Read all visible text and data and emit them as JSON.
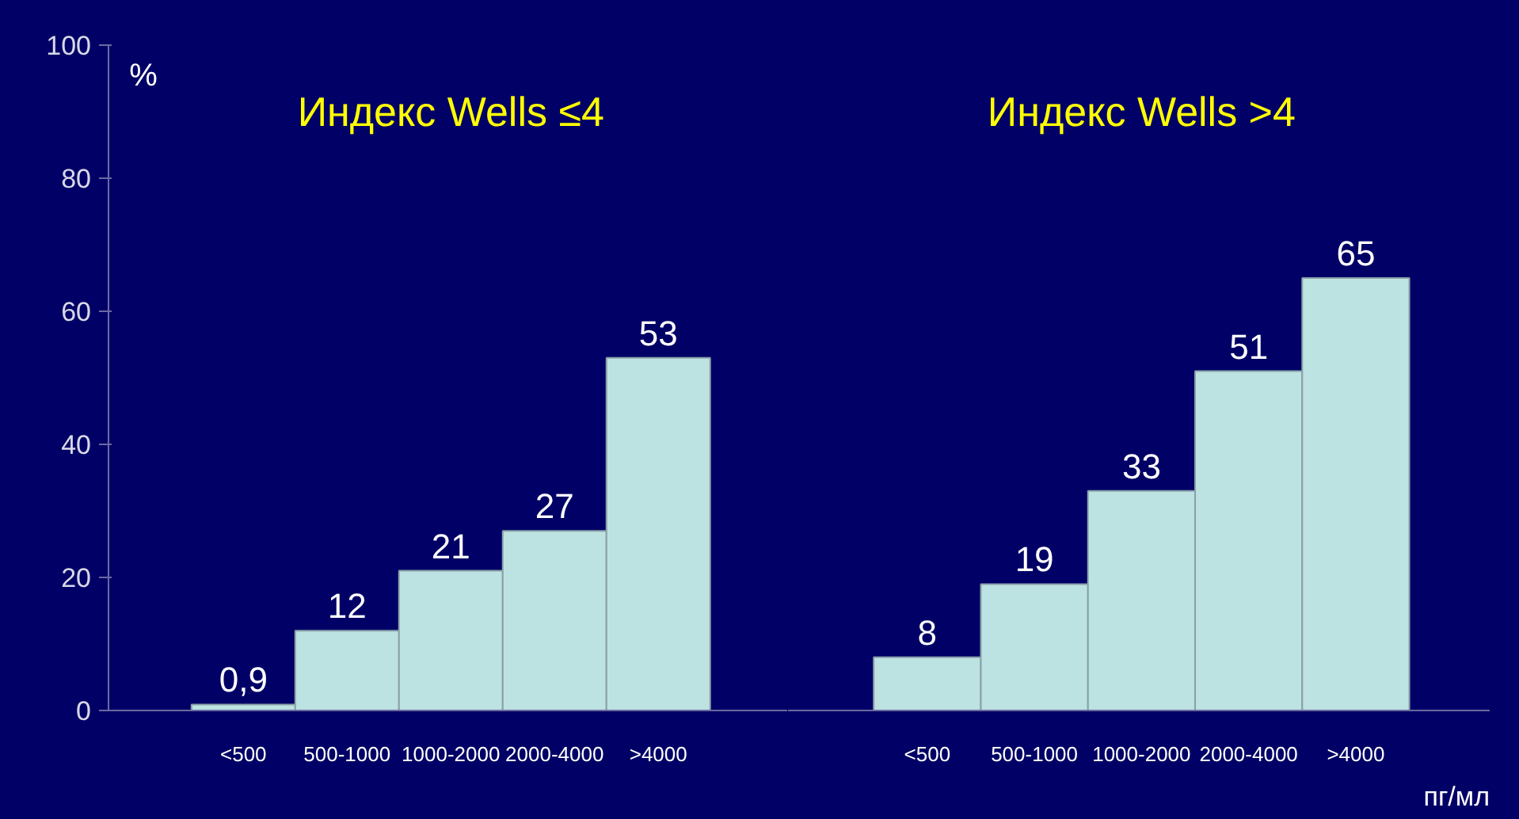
{
  "chart_data": [
    {
      "type": "bar",
      "title": "Индекс Wells ≤4",
      "ylabel": "%",
      "categories": [
        "<500",
        "500-1000",
        "1000-2000",
        "2000-4000",
        ">4000"
      ],
      "values": [
        0.9,
        12,
        21,
        27,
        53
      ],
      "value_labels": [
        "0,9",
        "12",
        "21",
        "27",
        "53"
      ],
      "color": "#bde2e2",
      "ylim": [
        0,
        100
      ],
      "yticks": [
        0,
        20,
        40,
        60,
        80,
        100
      ],
      "grid": false
    },
    {
      "type": "bar",
      "title": "Индекс Wells >4",
      "xlabel": "пг/мл",
      "categories": [
        "<500",
        "500-1000",
        "1000-2000",
        "2000-4000",
        ">4000"
      ],
      "values": [
        8,
        19,
        33,
        51,
        65
      ],
      "value_labels": [
        "8",
        "19",
        "33",
        "51",
        "65"
      ],
      "color": "#bde2e2",
      "ylim": [
        0,
        100
      ],
      "yticks": [
        0,
        20,
        40,
        60,
        80,
        100
      ],
      "grid": false,
      "tick_labels": "x"
    }
  ]
}
